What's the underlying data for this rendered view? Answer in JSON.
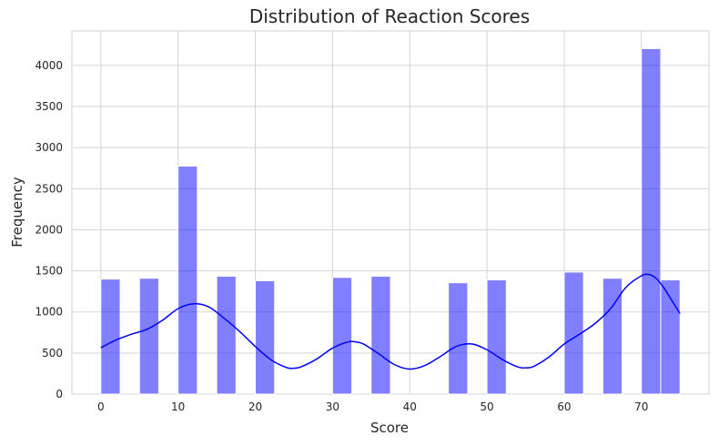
{
  "chart_data": {
    "type": "bar",
    "title": "Distribution of Reaction Scores",
    "xlabel": "Score",
    "ylabel": "Frequency",
    "xlim": [
      -3.75,
      78.75
    ],
    "ylim": [
      0,
      4420
    ],
    "xticks": [
      0,
      10,
      20,
      30,
      40,
      50,
      60,
      70
    ],
    "yticks": [
      0,
      500,
      1000,
      1500,
      2000,
      2500,
      3000,
      3500,
      4000
    ],
    "grid": true,
    "bar_color": "#0000ff",
    "bar_opacity": 0.5,
    "kde_color": "#0000ff",
    "bins": [
      {
        "start": 0.0,
        "end": 2.5,
        "count": 1400
      },
      {
        "start": 2.5,
        "end": 5.0,
        "count": 0
      },
      {
        "start": 5.0,
        "end": 7.5,
        "count": 1410
      },
      {
        "start": 7.5,
        "end": 10.0,
        "count": 0
      },
      {
        "start": 10.0,
        "end": 12.5,
        "count": 2775
      },
      {
        "start": 12.5,
        "end": 15.0,
        "count": 0
      },
      {
        "start": 15.0,
        "end": 17.5,
        "count": 1435
      },
      {
        "start": 17.5,
        "end": 20.0,
        "count": 0
      },
      {
        "start": 20.0,
        "end": 22.5,
        "count": 1380
      },
      {
        "start": 22.5,
        "end": 25.0,
        "count": 0
      },
      {
        "start": 25.0,
        "end": 27.5,
        "count": 0
      },
      {
        "start": 27.5,
        "end": 30.0,
        "count": 0
      },
      {
        "start": 30.0,
        "end": 32.5,
        "count": 1420
      },
      {
        "start": 32.5,
        "end": 35.0,
        "count": 0
      },
      {
        "start": 35.0,
        "end": 37.5,
        "count": 1435
      },
      {
        "start": 37.5,
        "end": 40.0,
        "count": 0
      },
      {
        "start": 40.0,
        "end": 42.5,
        "count": 0
      },
      {
        "start": 42.5,
        "end": 45.0,
        "count": 0
      },
      {
        "start": 45.0,
        "end": 47.5,
        "count": 1355
      },
      {
        "start": 47.5,
        "end": 50.0,
        "count": 0
      },
      {
        "start": 50.0,
        "end": 52.5,
        "count": 1390
      },
      {
        "start": 52.5,
        "end": 55.0,
        "count": 0
      },
      {
        "start": 55.0,
        "end": 57.5,
        "count": 0
      },
      {
        "start": 57.5,
        "end": 60.0,
        "count": 0
      },
      {
        "start": 60.0,
        "end": 62.5,
        "count": 1485
      },
      {
        "start": 62.5,
        "end": 65.0,
        "count": 0
      },
      {
        "start": 65.0,
        "end": 67.5,
        "count": 1410
      },
      {
        "start": 67.5,
        "end": 70.0,
        "count": 0
      },
      {
        "start": 70.0,
        "end": 72.5,
        "count": 4205
      },
      {
        "start": 72.5,
        "end": 75.0,
        "count": 1390
      }
    ],
    "kde": {
      "x": [
        0,
        2,
        4,
        6,
        8,
        10,
        12,
        14,
        16,
        18,
        20,
        22,
        24,
        25,
        26,
        28,
        30,
        32,
        33,
        34,
        36,
        38,
        40,
        42,
        44,
        46,
        48,
        50,
        52,
        54,
        55,
        56,
        58,
        60,
        62,
        64,
        66,
        68,
        70,
        71,
        72,
        73,
        74,
        75
      ],
      "y": [
        565,
        660,
        730,
        790,
        900,
        1040,
        1100,
        1060,
        920,
        760,
        580,
        420,
        325,
        315,
        335,
        430,
        560,
        635,
        635,
        610,
        490,
        360,
        305,
        350,
        460,
        580,
        610,
        540,
        420,
        330,
        320,
        335,
        450,
        610,
        730,
        860,
        1040,
        1300,
        1440,
        1455,
        1400,
        1280,
        1130,
        980
      ]
    }
  }
}
